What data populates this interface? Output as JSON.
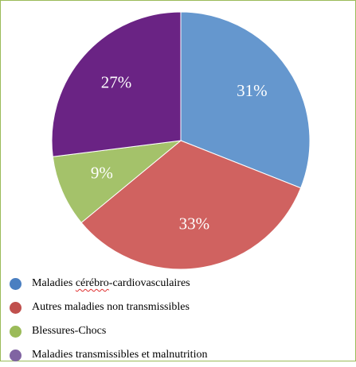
{
  "chart_data": {
    "type": "pie",
    "title": "",
    "slices": [
      {
        "label": "Maladies cérébro-cardiovasculaires",
        "value": 31,
        "display": "31%",
        "color": "#6597ce"
      },
      {
        "label": "Autres maladies non transmissibles",
        "value": 33,
        "display": "33%",
        "color": "#d06260"
      },
      {
        "label": "Blessures-Chocs",
        "value": 9,
        "display": "9%",
        "color": "#a4c26a"
      },
      {
        "label": "Maladies transmissibles et malnutrition",
        "value": 27,
        "display": "27%",
        "color": "#6a2384"
      }
    ],
    "legend_position": "bottom-left",
    "start_angle": "top, clockwise"
  },
  "legend": {
    "items": [
      {
        "prefix": "Maladies ",
        "flagged": "cérébro",
        "suffix": "-cardiovasculaires",
        "color": "#4a7fc1"
      },
      {
        "prefix": "Autres maladies non transmissibles",
        "flagged": "",
        "suffix": "",
        "color": "#c0504d"
      },
      {
        "prefix": "Blessures-Chocs",
        "flagged": "",
        "suffix": "",
        "color": "#9bbb59"
      },
      {
        "prefix": "Maladies transmissibles et malnutrition",
        "flagged": "",
        "suffix": "",
        "color": "#8064a2"
      }
    ]
  }
}
